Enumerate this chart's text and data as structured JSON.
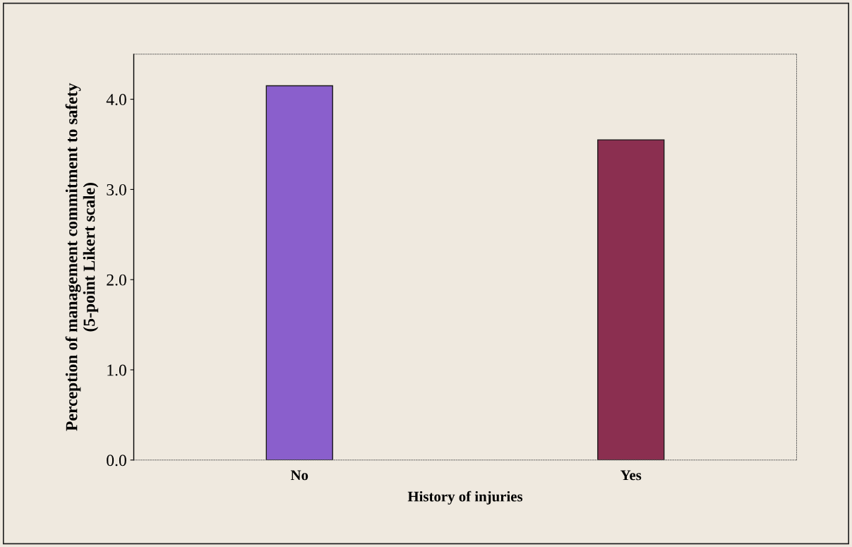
{
  "chart_data": {
    "type": "bar",
    "xlabel": "History of injuries",
    "ylabel": "Perception of management commitment to safety\n(5-point Likert scale)",
    "categories": [
      "No",
      "Yes"
    ],
    "values": [
      4.15,
      3.55
    ],
    "colors": [
      "#8a5fcc",
      "#8b2f50"
    ],
    "ylim": [
      0.0,
      4.5
    ],
    "yticks": [
      {
        "value": 0,
        "label": "0.0"
      },
      {
        "value": 1,
        "label": "1.0"
      },
      {
        "value": 2,
        "label": "2.0"
      },
      {
        "value": 3,
        "label": "3.0"
      },
      {
        "value": 4,
        "label": "4.0"
      }
    ]
  }
}
